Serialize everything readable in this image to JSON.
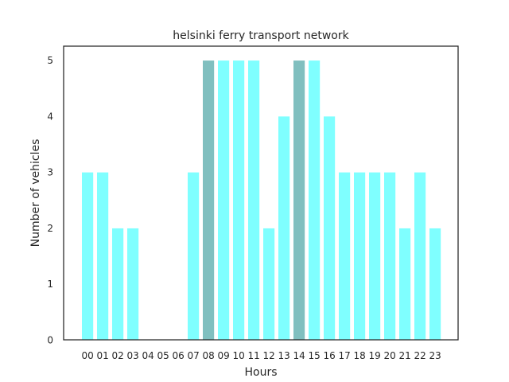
{
  "chart_data": {
    "type": "bar",
    "title": "helsinki ferry transport network",
    "xlabel": "Hours",
    "ylabel": "Number of vehicles",
    "categories": [
      "00",
      "01",
      "02",
      "03",
      "04",
      "05",
      "06",
      "07",
      "08",
      "09",
      "10",
      "11",
      "12",
      "13",
      "14",
      "15",
      "16",
      "17",
      "18",
      "19",
      "20",
      "21",
      "22",
      "23"
    ],
    "values": [
      3,
      3,
      2,
      2,
      0,
      0,
      0,
      3,
      5,
      5,
      5,
      5,
      2,
      4,
      5,
      5,
      4,
      3,
      3,
      3,
      3,
      2,
      3,
      2
    ],
    "highlighted": [
      "08",
      "14"
    ],
    "ylim": [
      0,
      5.25
    ],
    "yticks": [
      0,
      1,
      2,
      3,
      4,
      5
    ],
    "grid": false,
    "colors": {
      "bar": "#7fffff",
      "highlight": "#80bfbf",
      "bar_edge": "#ffffff",
      "frame": "#262626",
      "text": "#262626"
    }
  }
}
